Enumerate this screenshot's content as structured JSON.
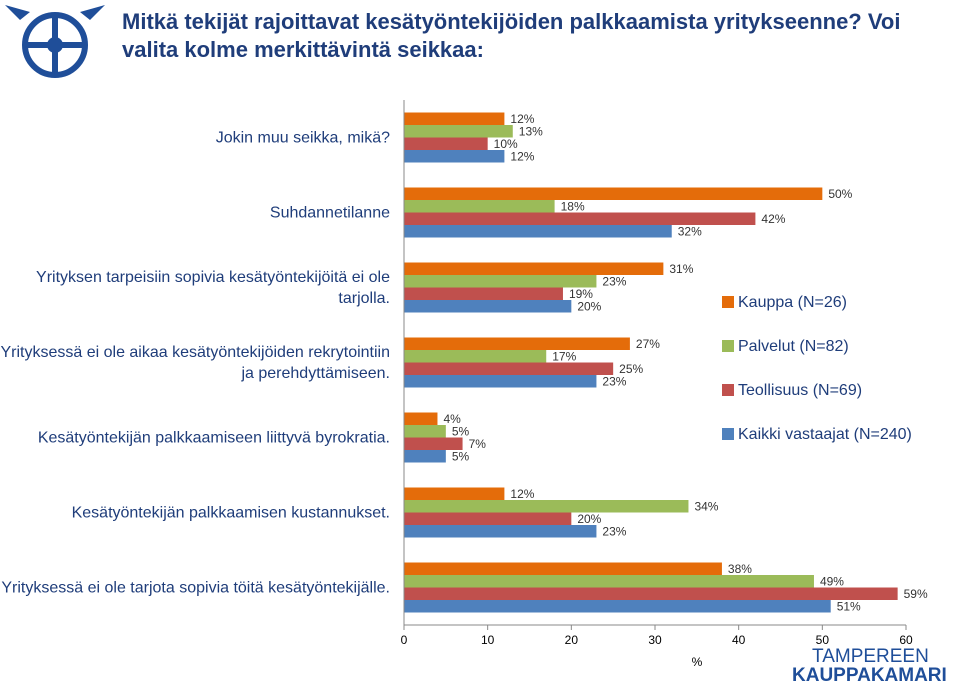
{
  "chart_data": {
    "type": "hbar",
    "title": "Mitkä tekijät rajoittavat kesätyöntekijöiden palkkaamista yritykseenne? Voi valita kolme merkittävintä seikkaa:",
    "categories": [
      "Jokin muu seikka, mikä?",
      "Suhdannetilanne",
      "Yrityksen tarpeisiin sopivia kesätyöntekijöitä ei ole tarjolla.",
      "Yrityksessä ei ole aikaa kesätyöntekijöiden rekrytointiin ja perehdyttämiseen.",
      "Kesätyöntekijän palkkaamiseen liittyvä byrokratia.",
      "Kesätyöntekijän palkkaamisen kustannukset.",
      "Yrityksessä ei ole tarjota sopivia töitä kesätyöntekijälle."
    ],
    "series": [
      {
        "name": "Kauppa (N=26)",
        "color": "#e46c0a",
        "values": [
          12,
          50,
          31,
          27,
          4,
          12,
          38
        ],
        "value_labels": [
          "12%",
          "50%",
          "31%",
          "27%",
          "4%",
          "12%",
          "38%"
        ]
      },
      {
        "name": "Palvelut (N=82)",
        "color": "#9bbb59",
        "values": [
          13,
          18,
          23,
          17,
          5,
          34,
          49
        ],
        "value_labels": [
          "13%",
          "18%",
          "23%",
          "17%",
          "5%",
          "34%",
          "49%"
        ]
      },
      {
        "name": "Teollisuus (N=69)",
        "color": "#c0504d",
        "values": [
          10,
          42,
          19,
          25,
          7,
          20,
          59
        ],
        "value_labels": [
          "10%",
          "42%",
          "19%",
          "25%",
          "7%",
          "20%",
          "59%"
        ]
      },
      {
        "name": "Kaikki vastaajat (N=240)",
        "color": "#4f81bd",
        "values": [
          12,
          32,
          20,
          23,
          5,
          23,
          51
        ],
        "value_labels": [
          "12%",
          "32%",
          "20%",
          "23%",
          "5%",
          "23%",
          "51%"
        ]
      }
    ],
    "xlabel": "%",
    "xlim": [
      0,
      60
    ],
    "xticks": [
      0,
      10,
      20,
      30,
      40,
      50,
      60
    ],
    "legend": "right"
  },
  "logo": [
    "TAMPEREEN",
    "KAUPPAKAMARI"
  ]
}
